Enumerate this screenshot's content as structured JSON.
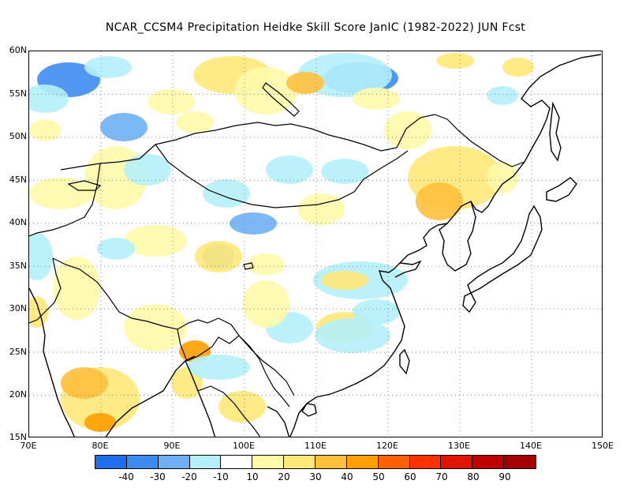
{
  "title": "NCAR_CCSM4  Precipitation Heidke Skill Score JanIC (1982-2022) JUN Fcst",
  "map": {
    "lat_labels": [
      "60N",
      "55N",
      "50N",
      "45N",
      "40N",
      "35N",
      "30N",
      "25N",
      "20N",
      "15N"
    ],
    "lon_labels": [
      "70E",
      "80E",
      "90E",
      "100E",
      "110E",
      "120E",
      "130E",
      "140E",
      "150E"
    ],
    "extent": {
      "lon_min": 70,
      "lon_max": 150,
      "lat_min": 15,
      "lat_max": 60
    },
    "gridlines": "dotted",
    "land_color": "#ffffff",
    "coast_color": "#000000"
  },
  "colorbar": {
    "colors": [
      "#1e6eeb",
      "#3c8cf0",
      "#6eaff5",
      "#b4f0fa",
      "#ffffff",
      "#fffaaa",
      "#ffe878",
      "#ffc03c",
      "#ffa000",
      "#ff6000",
      "#ff3200",
      "#e11400",
      "#c00000",
      "#a50000"
    ],
    "labels": [
      "-40",
      "-30",
      "-20",
      "-10",
      "10",
      "20",
      "30",
      "40",
      "50",
      "60",
      "70",
      "80",
      "90"
    ]
  }
}
